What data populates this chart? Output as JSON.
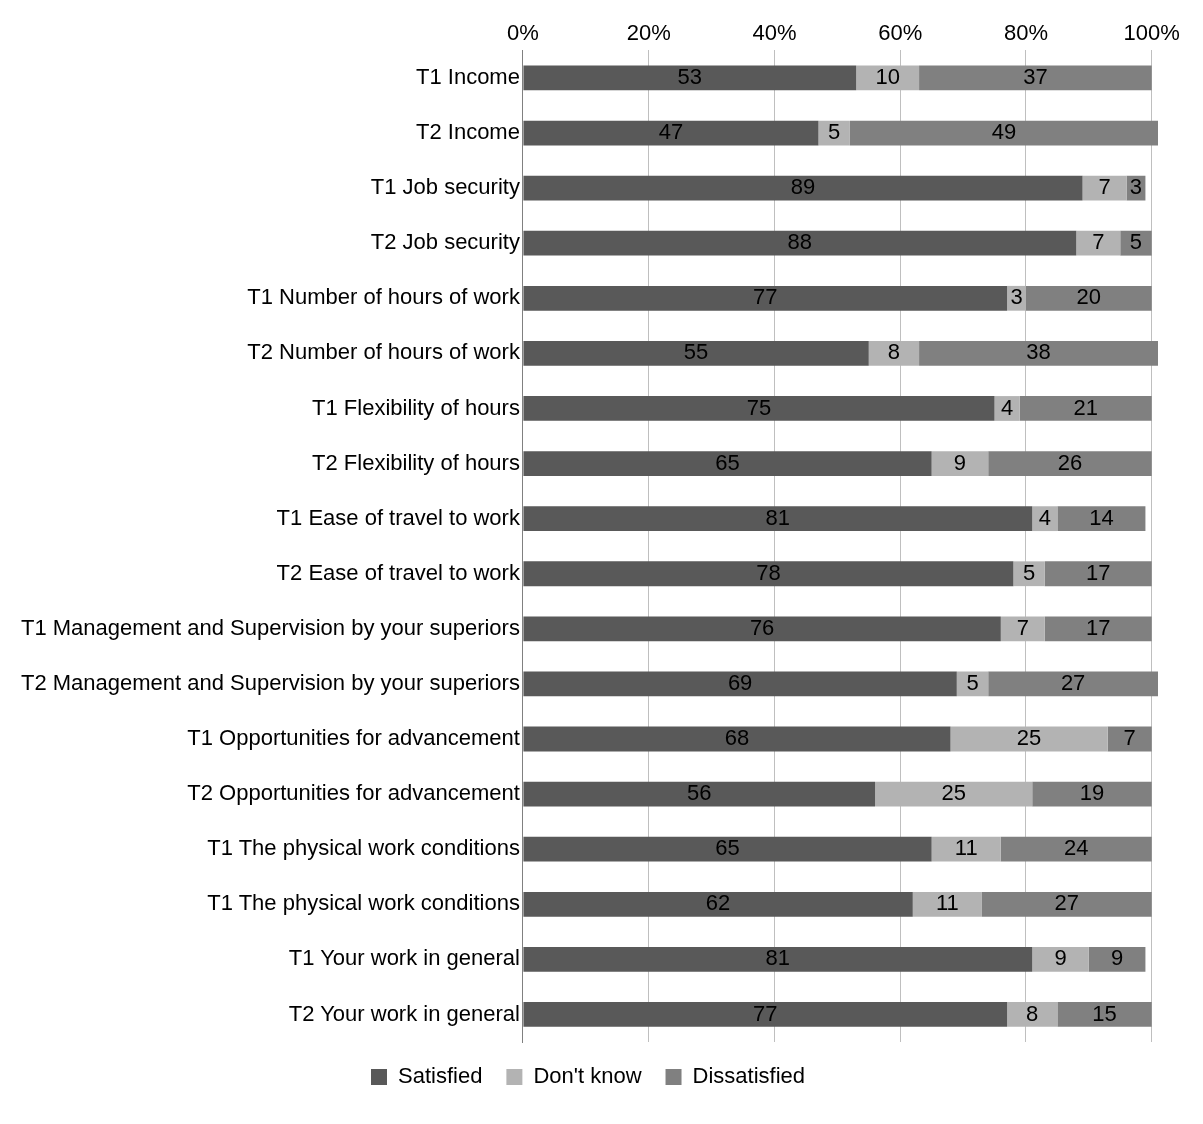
{
  "chart_data": {
    "type": "bar",
    "orientation": "horizontal",
    "stacked": true,
    "data_labels": true,
    "grid": "x",
    "legend": "bottom",
    "categories": [
      "T1 Income",
      "T2 Income",
      "T1 Job security",
      "T2 Job security",
      "T1 Number of hours of work",
      "T2 Number of hours of work",
      "T1 Flexibility of hours",
      "T2 Flexibility of hours",
      "T1 Ease of travel to work",
      "T2 Ease of travel to work",
      "T1 Management and Supervision by your superiors",
      "T2 Management and Supervision by your superiors",
      "T1 Opportunities for advancement",
      "T2 Opportunities for advancement",
      "T1 The physical work conditions",
      "T1 The physical work conditions",
      "T1 Your work in general",
      "T2 Your work in general"
    ],
    "series": [
      {
        "name": "Satisfied",
        "color": "#595959",
        "values": [
          53,
          47,
          89,
          88,
          77,
          55,
          75,
          65,
          81,
          78,
          76,
          69,
          68,
          56,
          65,
          62,
          81,
          77
        ]
      },
      {
        "name": "Don't know",
        "color": "#b3b3b3",
        "values": [
          10,
          5,
          7,
          7,
          3,
          8,
          4,
          9,
          4,
          5,
          7,
          5,
          25,
          25,
          11,
          11,
          9,
          8
        ]
      },
      {
        "name": "Dissatisfied",
        "color": "#808080",
        "values": [
          37,
          49,
          3,
          5,
          20,
          38,
          21,
          26,
          14,
          17,
          17,
          27,
          7,
          19,
          24,
          27,
          9,
          15
        ]
      }
    ],
    "xlim": [
      0,
      101
    ],
    "xticks": [
      {
        "value": 0,
        "label": "0%"
      },
      {
        "value": 20,
        "label": "20%"
      },
      {
        "value": 40,
        "label": "40%"
      },
      {
        "value": 60,
        "label": "60%"
      },
      {
        "value": 80,
        "label": "80%"
      },
      {
        "value": 100,
        "label": "100%"
      }
    ]
  }
}
